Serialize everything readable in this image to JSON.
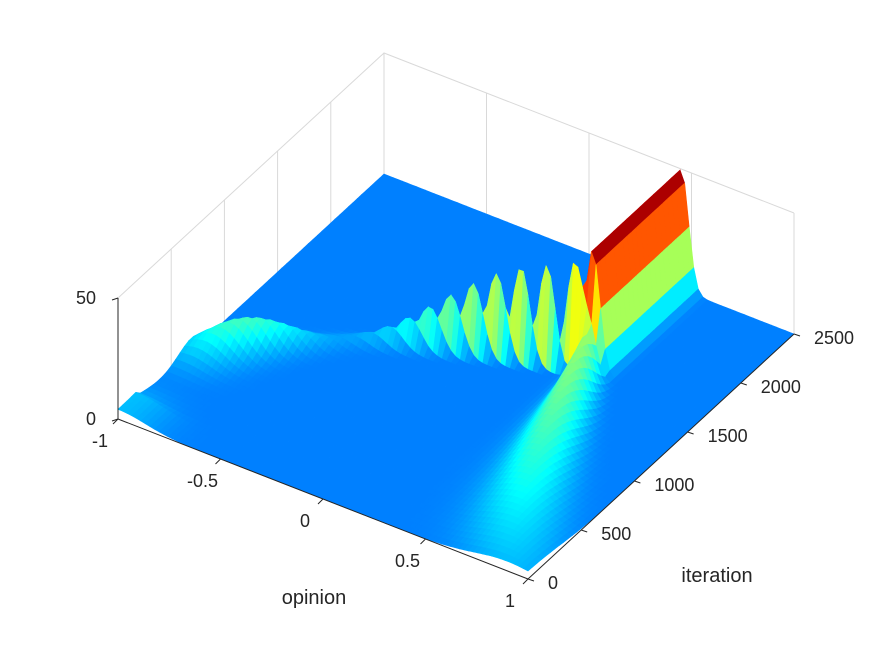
{
  "chart_data": {
    "type": "surface3d",
    "title": "",
    "xlabel": "opinion",
    "ylabel": "iteration",
    "zlabel": "",
    "xlim": [
      -1,
      1
    ],
    "ylim": [
      0,
      2500
    ],
    "zlim": [
      0,
      50
    ],
    "xticks": [
      "-1",
      "-0.5",
      "0",
      "0.5",
      "1"
    ],
    "yticks": [
      "0",
      "500",
      "1000",
      "1500",
      "2000",
      "2500"
    ],
    "zticks": [
      "0",
      "50"
    ],
    "colormap": "jet",
    "grid": true,
    "series": [
      {
        "x_start": -1.0,
        "x_end": 0.45,
        "iter_start": 0,
        "iter_end": 1650,
        "peak_density": 45
      },
      {
        "x_start": 0.9,
        "x_end": 0.45,
        "iter_start": 0,
        "iter_end": 1650,
        "peak_density": 20
      },
      {
        "x_start": 0.45,
        "x_end": 0.45,
        "iter_start": 1650,
        "iter_end": 2500,
        "peak_density": 50
      }
    ]
  }
}
